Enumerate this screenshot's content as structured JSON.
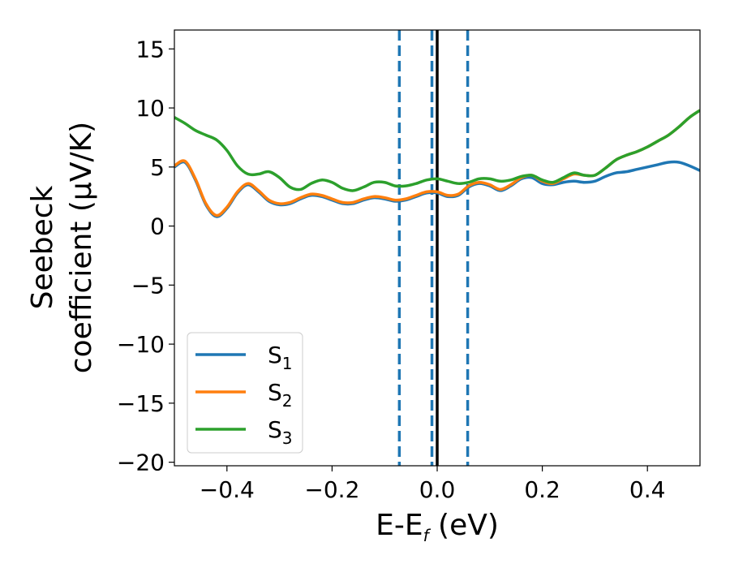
{
  "chart_data": {
    "type": "line",
    "xlabel_main": "E-E",
    "xlabel_sub": "f",
    "xlabel_unit": " (eV)",
    "ylabel_line1": "Seebeck",
    "ylabel_line2": "coefficient  (μV/K)",
    "xlim": [
      -0.5,
      0.5
    ],
    "ylim": [
      -20.3,
      16.6
    ],
    "xticks": [
      -0.4,
      -0.2,
      0.0,
      0.2,
      0.4
    ],
    "xtick_labels": [
      "−0.4",
      "−0.2",
      "0.0",
      "0.2",
      "0.4"
    ],
    "yticks": [
      -20,
      -15,
      -10,
      -5,
      0,
      5,
      10,
      15
    ],
    "ytick_labels": [
      "−20",
      "−15",
      "−10",
      "−5",
      "0",
      "5",
      "10",
      "15"
    ],
    "grid": false,
    "legend_position": "lower-left",
    "vlines": [
      {
        "x": -0.072,
        "style": "dashed",
        "color": "#1f77b4"
      },
      {
        "x": -0.01,
        "style": "dashed",
        "color": "#1f77b4"
      },
      {
        "x": 0.0,
        "style": "solid",
        "color": "#000000"
      },
      {
        "x": 0.058,
        "style": "dashed",
        "color": "#1f77b4"
      }
    ],
    "series": [
      {
        "name": "S",
        "sub": "1",
        "color": "#1f77b4",
        "x": [
          -0.5,
          -0.48,
          -0.46,
          -0.44,
          -0.42,
          -0.4,
          -0.38,
          -0.36,
          -0.34,
          -0.32,
          -0.3,
          -0.28,
          -0.26,
          -0.24,
          -0.22,
          -0.2,
          -0.18,
          -0.16,
          -0.14,
          -0.12,
          -0.1,
          -0.08,
          -0.06,
          -0.04,
          -0.02,
          0.0,
          0.02,
          0.04,
          0.06,
          0.08,
          0.1,
          0.12,
          0.14,
          0.16,
          0.18,
          0.2,
          0.22,
          0.24,
          0.26,
          0.28,
          0.3,
          0.32,
          0.34,
          0.36,
          0.38,
          0.4,
          0.42,
          0.44,
          0.46,
          0.48,
          0.5
        ],
        "values": [
          5.0,
          5.4,
          3.9,
          1.8,
          0.8,
          1.5,
          2.8,
          3.5,
          2.9,
          2.1,
          1.8,
          1.9,
          2.3,
          2.6,
          2.5,
          2.2,
          1.9,
          1.9,
          2.2,
          2.4,
          2.3,
          2.1,
          2.2,
          2.5,
          2.8,
          2.8,
          2.5,
          2.6,
          3.3,
          3.6,
          3.4,
          3.0,
          3.4,
          4.0,
          4.1,
          3.6,
          3.5,
          3.7,
          3.8,
          3.7,
          3.8,
          4.2,
          4.5,
          4.6,
          4.8,
          5.0,
          5.2,
          5.4,
          5.4,
          5.1,
          4.7
        ]
      },
      {
        "name": "S",
        "sub": "2",
        "color": "#ff7f0e",
        "x": [
          -0.5,
          -0.48,
          -0.46,
          -0.44,
          -0.42,
          -0.4,
          -0.38,
          -0.36,
          -0.34,
          -0.32,
          -0.3,
          -0.28,
          -0.26,
          -0.24,
          -0.22,
          -0.2,
          -0.18,
          -0.16,
          -0.14,
          -0.12,
          -0.1,
          -0.08,
          -0.06,
          -0.04,
          -0.02,
          0.0,
          0.02,
          0.04,
          0.06,
          0.08,
          0.1,
          0.12,
          0.14,
          0.16,
          0.18,
          0.2,
          0.22,
          0.24,
          0.26,
          0.28,
          0.3,
          0.32,
          0.34,
          0.36,
          0.38,
          0.4,
          0.42,
          0.44,
          0.46,
          0.48,
          0.5
        ],
        "values": [
          5.1,
          5.5,
          4.0,
          1.9,
          0.9,
          1.6,
          2.9,
          3.6,
          3.0,
          2.2,
          1.9,
          2.0,
          2.4,
          2.7,
          2.6,
          2.3,
          2.0,
          2.0,
          2.3,
          2.5,
          2.4,
          2.2,
          2.3,
          2.6,
          2.9,
          2.9,
          2.6,
          2.7,
          3.4,
          3.7,
          3.5,
          3.1,
          3.5,
          4.1,
          4.3,
          3.8,
          3.6,
          4.0,
          4.4,
          4.3,
          4.3,
          4.9,
          5.6,
          6.0,
          6.3,
          6.7,
          7.2,
          7.7,
          8.4,
          9.2,
          9.8
        ]
      },
      {
        "name": "S",
        "sub": "3",
        "color": "#2ca02c",
        "x": [
          -0.5,
          -0.48,
          -0.46,
          -0.44,
          -0.42,
          -0.4,
          -0.38,
          -0.36,
          -0.34,
          -0.32,
          -0.3,
          -0.28,
          -0.26,
          -0.24,
          -0.22,
          -0.2,
          -0.18,
          -0.16,
          -0.14,
          -0.12,
          -0.1,
          -0.08,
          -0.06,
          -0.04,
          -0.02,
          0.0,
          0.02,
          0.04,
          0.06,
          0.08,
          0.1,
          0.12,
          0.14,
          0.16,
          0.18,
          0.2,
          0.22,
          0.24,
          0.26,
          0.28,
          0.3,
          0.32,
          0.34,
          0.36,
          0.38,
          0.4,
          0.42,
          0.44,
          0.46,
          0.48,
          0.5
        ],
        "values": [
          9.2,
          8.7,
          8.1,
          7.7,
          7.3,
          6.4,
          5.1,
          4.4,
          4.4,
          4.6,
          4.1,
          3.3,
          3.1,
          3.6,
          3.9,
          3.7,
          3.2,
          3.0,
          3.3,
          3.7,
          3.7,
          3.4,
          3.4,
          3.6,
          3.9,
          4.0,
          3.8,
          3.6,
          3.7,
          4.0,
          4.0,
          3.8,
          3.9,
          4.2,
          4.3,
          3.9,
          3.7,
          4.1,
          4.5,
          4.3,
          4.3,
          4.9,
          5.6,
          6.0,
          6.3,
          6.7,
          7.2,
          7.7,
          8.4,
          9.2,
          9.8
        ]
      }
    ]
  }
}
